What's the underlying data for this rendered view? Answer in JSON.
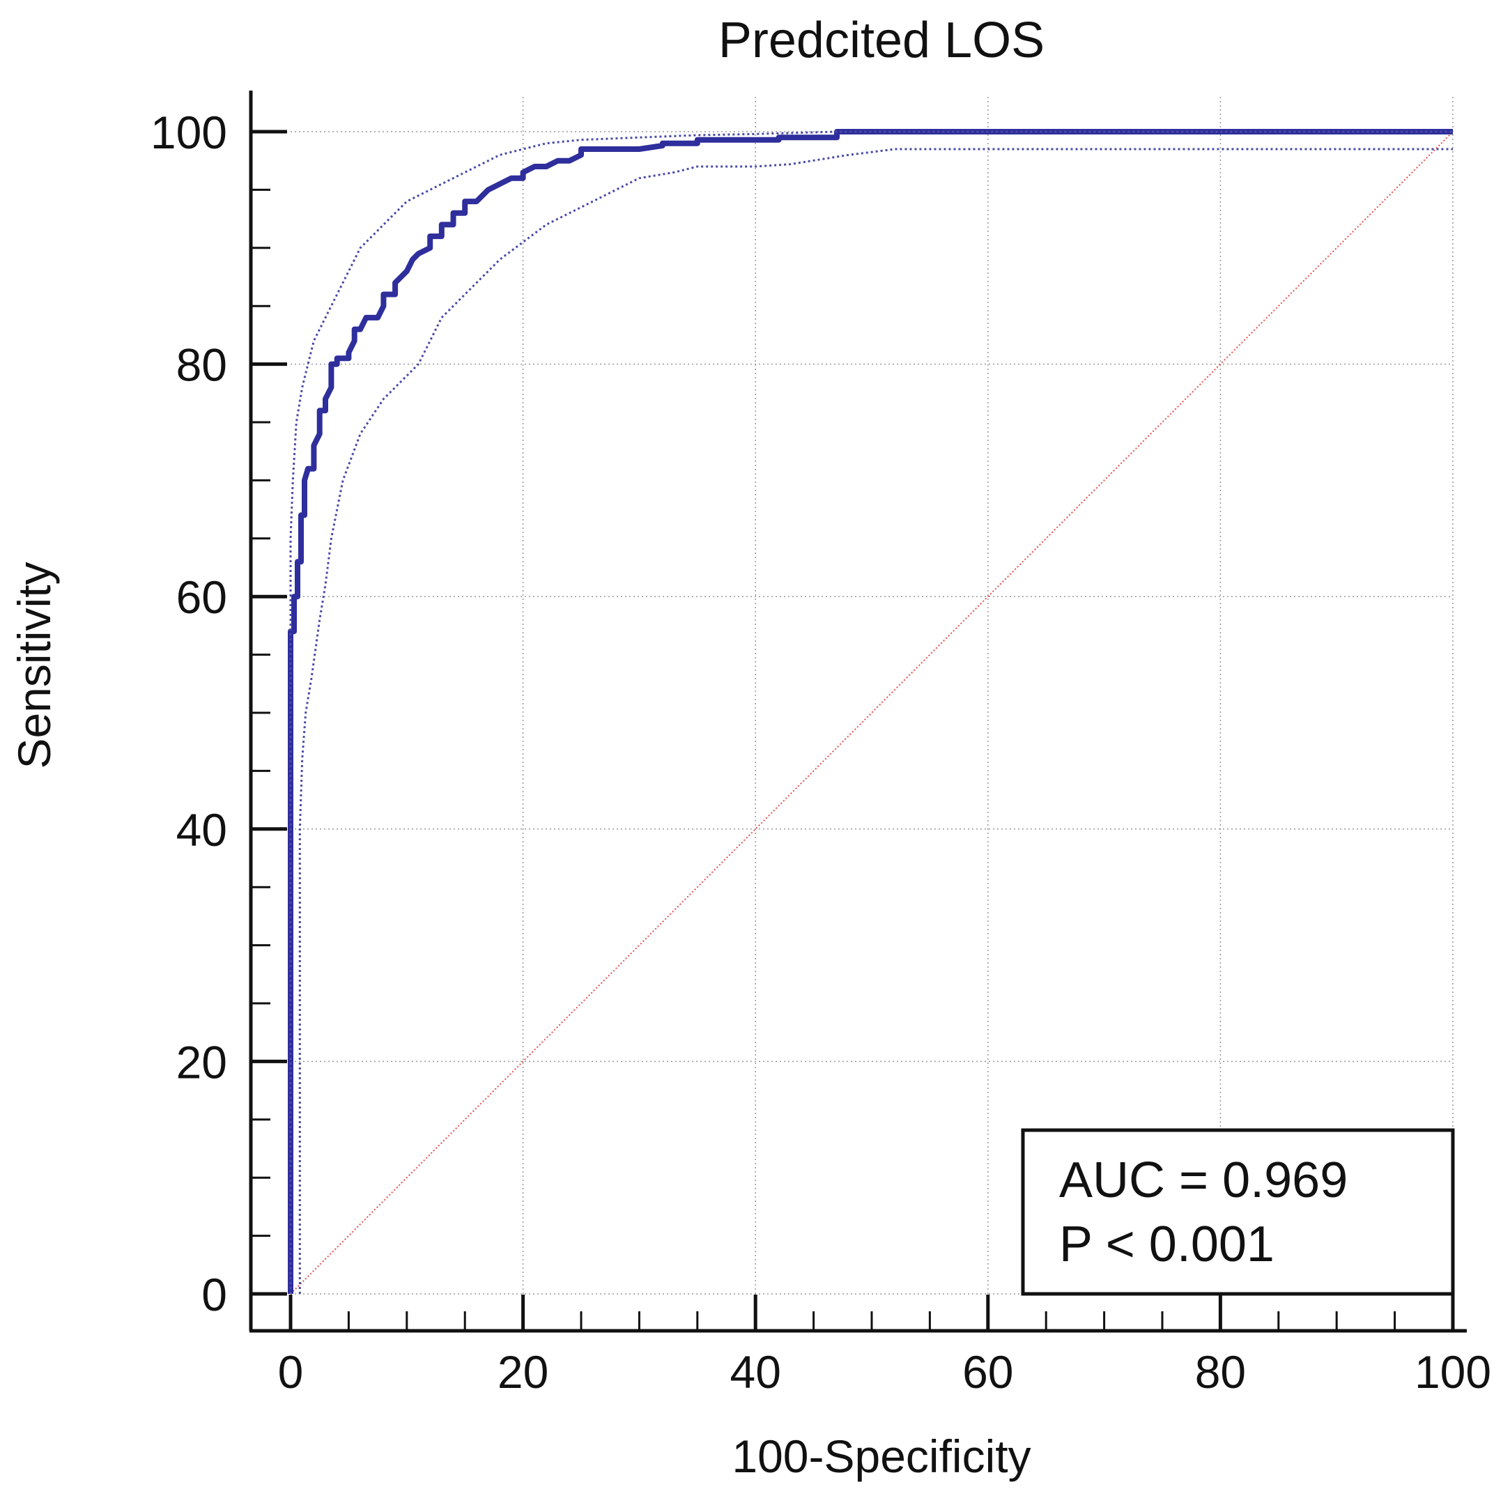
{
  "chart_data": {
    "type": "line",
    "title": "Predcited LOS",
    "xlabel": "100-Specificity",
    "ylabel": "Sensitivity",
    "xlim": [
      0,
      100
    ],
    "ylim": [
      0,
      100
    ],
    "xticks": [
      0,
      20,
      40,
      60,
      80,
      100
    ],
    "yticks": [
      0,
      20,
      40,
      60,
      80,
      100
    ],
    "grid": true,
    "colors": {
      "roc": "#2e2e9c",
      "ci": "#4a4aa8",
      "reference": "#e05050",
      "axis": "#111111",
      "grid": "#999999"
    },
    "series": [
      {
        "name": "ROC curve",
        "style": "solid",
        "points": [
          [
            0,
            0
          ],
          [
            0,
            57
          ],
          [
            0.3,
            57
          ],
          [
            0.3,
            60
          ],
          [
            0.6,
            60
          ],
          [
            0.6,
            63
          ],
          [
            0.9,
            63
          ],
          [
            0.9,
            67
          ],
          [
            1.2,
            67
          ],
          [
            1.2,
            70
          ],
          [
            1.5,
            71
          ],
          [
            2,
            71
          ],
          [
            2,
            73
          ],
          [
            2.5,
            74
          ],
          [
            2.5,
            76
          ],
          [
            3,
            76
          ],
          [
            3,
            77
          ],
          [
            3.5,
            78
          ],
          [
            3.5,
            80
          ],
          [
            4,
            80
          ],
          [
            4,
            80.5
          ],
          [
            5,
            80.5
          ],
          [
            5,
            81
          ],
          [
            5.5,
            82
          ],
          [
            5.5,
            83
          ],
          [
            6,
            83
          ],
          [
            6.5,
            84
          ],
          [
            7.5,
            84
          ],
          [
            8,
            85
          ],
          [
            8,
            86
          ],
          [
            9,
            86
          ],
          [
            9,
            87
          ],
          [
            10,
            88
          ],
          [
            10.5,
            89
          ],
          [
            11,
            89.5
          ],
          [
            12,
            90
          ],
          [
            12,
            91
          ],
          [
            13,
            91
          ],
          [
            13,
            92
          ],
          [
            14,
            92
          ],
          [
            14,
            93
          ],
          [
            15,
            93
          ],
          [
            15,
            94
          ],
          [
            16,
            94
          ],
          [
            17,
            95
          ],
          [
            18,
            95.5
          ],
          [
            19,
            96
          ],
          [
            20,
            96
          ],
          [
            20,
            96.5
          ],
          [
            21,
            97
          ],
          [
            22,
            97
          ],
          [
            23,
            97.5
          ],
          [
            24,
            97.5
          ],
          [
            25,
            98
          ],
          [
            25,
            98.5
          ],
          [
            30,
            98.5
          ],
          [
            32,
            98.8
          ],
          [
            32,
            99
          ],
          [
            35,
            99
          ],
          [
            35,
            99.3
          ],
          [
            42,
            99.3
          ],
          [
            42,
            99.5
          ],
          [
            47,
            99.5
          ],
          [
            47,
            100
          ],
          [
            100,
            100
          ]
        ]
      },
      {
        "name": "Upper 95% CI",
        "style": "dotted",
        "points": [
          [
            0,
            0
          ],
          [
            0,
            65
          ],
          [
            0.2,
            70
          ],
          [
            0.5,
            75
          ],
          [
            1,
            78
          ],
          [
            1.5,
            80
          ],
          [
            2,
            82
          ],
          [
            3,
            84
          ],
          [
            4,
            86
          ],
          [
            5,
            88
          ],
          [
            6,
            90
          ],
          [
            7,
            91
          ],
          [
            8,
            92
          ],
          [
            10,
            94
          ],
          [
            12,
            95
          ],
          [
            14,
            96
          ],
          [
            16,
            97
          ],
          [
            18,
            98
          ],
          [
            20,
            98.5
          ],
          [
            22,
            99
          ],
          [
            25,
            99.3
          ],
          [
            30,
            99.5
          ],
          [
            35,
            99.7
          ],
          [
            40,
            99.8
          ],
          [
            47,
            100
          ],
          [
            100,
            100
          ]
        ]
      },
      {
        "name": "Lower 95% CI",
        "style": "dotted",
        "points": [
          [
            0.8,
            0
          ],
          [
            0.8,
            40
          ],
          [
            1,
            46
          ],
          [
            1.3,
            50
          ],
          [
            1.8,
            53
          ],
          [
            2.5,
            58
          ],
          [
            3,
            61
          ],
          [
            3.5,
            65
          ],
          [
            4.5,
            70
          ],
          [
            6,
            74
          ],
          [
            8,
            77
          ],
          [
            10,
            79
          ],
          [
            11,
            80
          ],
          [
            12,
            82
          ],
          [
            13,
            84
          ],
          [
            14,
            85
          ],
          [
            16,
            87
          ],
          [
            17,
            88
          ],
          [
            18,
            89
          ],
          [
            20,
            90.5
          ],
          [
            22,
            92
          ],
          [
            24,
            93
          ],
          [
            26,
            94
          ],
          [
            28,
            95
          ],
          [
            30,
            96
          ],
          [
            33,
            96.5
          ],
          [
            35,
            97
          ],
          [
            40,
            97
          ],
          [
            43,
            97.2
          ],
          [
            48,
            98
          ],
          [
            52,
            98.5
          ],
          [
            100,
            98.5
          ]
        ]
      },
      {
        "name": "Reference line",
        "style": "dotted-thin",
        "points": [
          [
            0,
            0
          ],
          [
            100,
            100
          ]
        ]
      }
    ],
    "annotation": {
      "auc": "AUC = 0.969",
      "p": "P < 0.001"
    }
  }
}
